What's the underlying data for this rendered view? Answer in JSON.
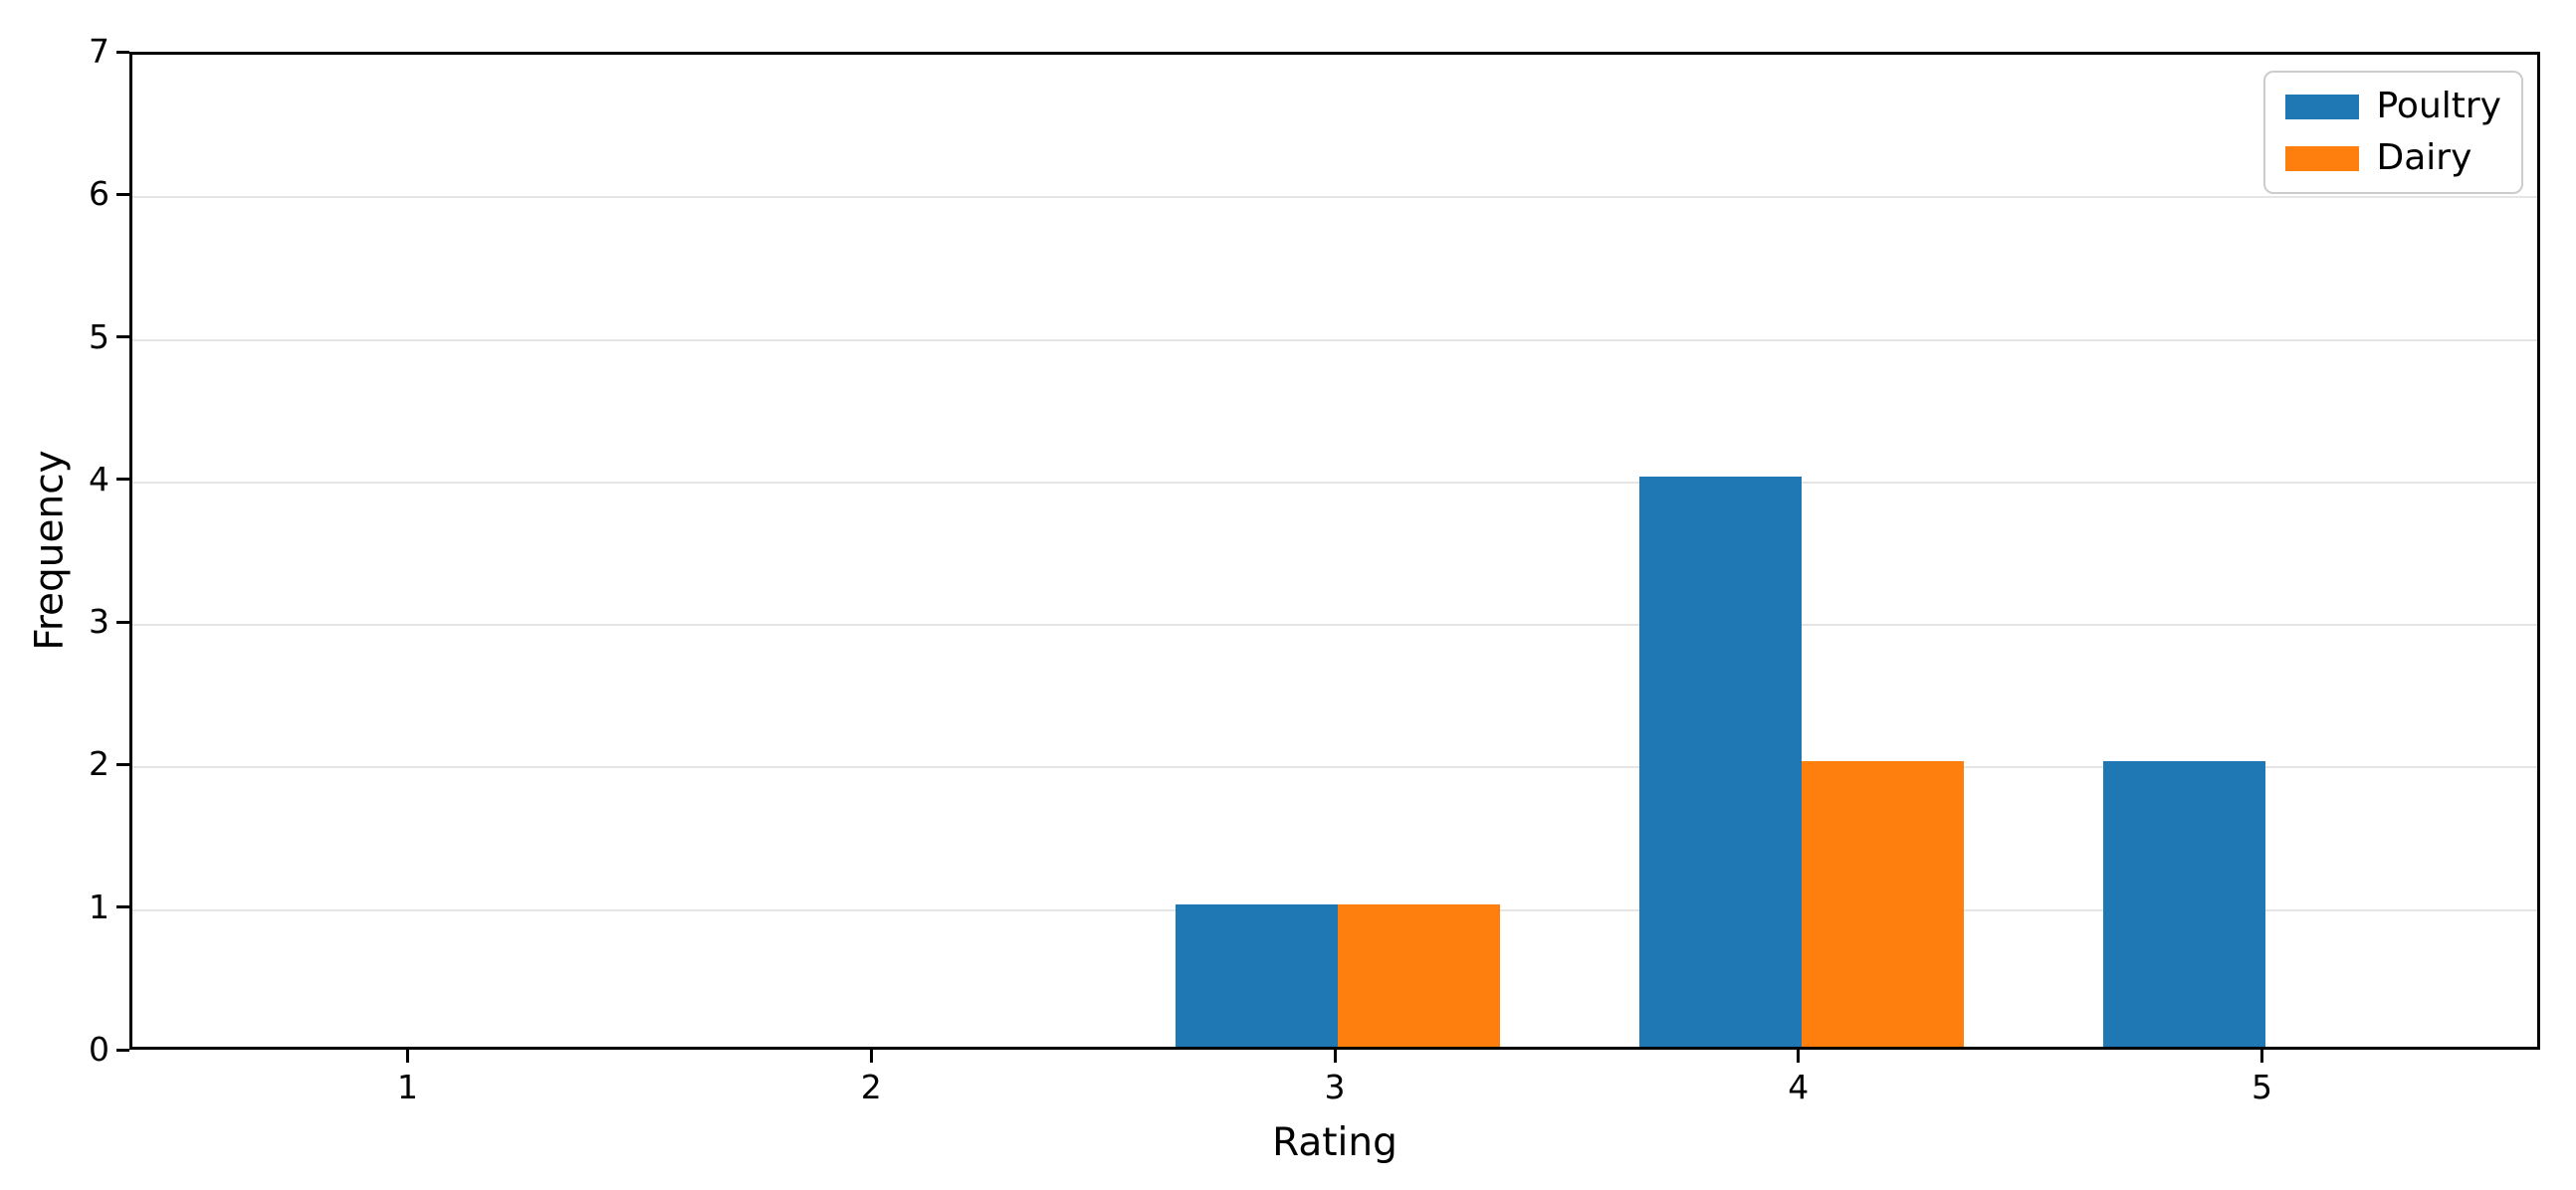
{
  "chart_data": {
    "type": "bar",
    "title": "",
    "xlabel": "Rating",
    "ylabel": "Frequency",
    "categories": [
      1,
      2,
      3,
      4,
      5
    ],
    "series": [
      {
        "name": "Poultry",
        "color": "#1f77b4",
        "values": [
          0,
          0,
          1,
          4,
          2
        ]
      },
      {
        "name": "Dairy",
        "color": "#ff7f0e",
        "values": [
          0,
          0,
          1,
          2,
          0
        ]
      }
    ],
    "bar_width": 0.35,
    "xlim": [
      0.4,
      5.6
    ],
    "ylim": [
      0,
      7
    ],
    "yticks": [
      0,
      1,
      2,
      3,
      4,
      5,
      6,
      7
    ],
    "grid": "horizontal-gridlines-on",
    "legend_position": "upper-right",
    "colors": {
      "axis": "#000000",
      "gridline": "#e5e5e5",
      "background": "#ffffff",
      "legend_border": "#cccccc"
    }
  }
}
